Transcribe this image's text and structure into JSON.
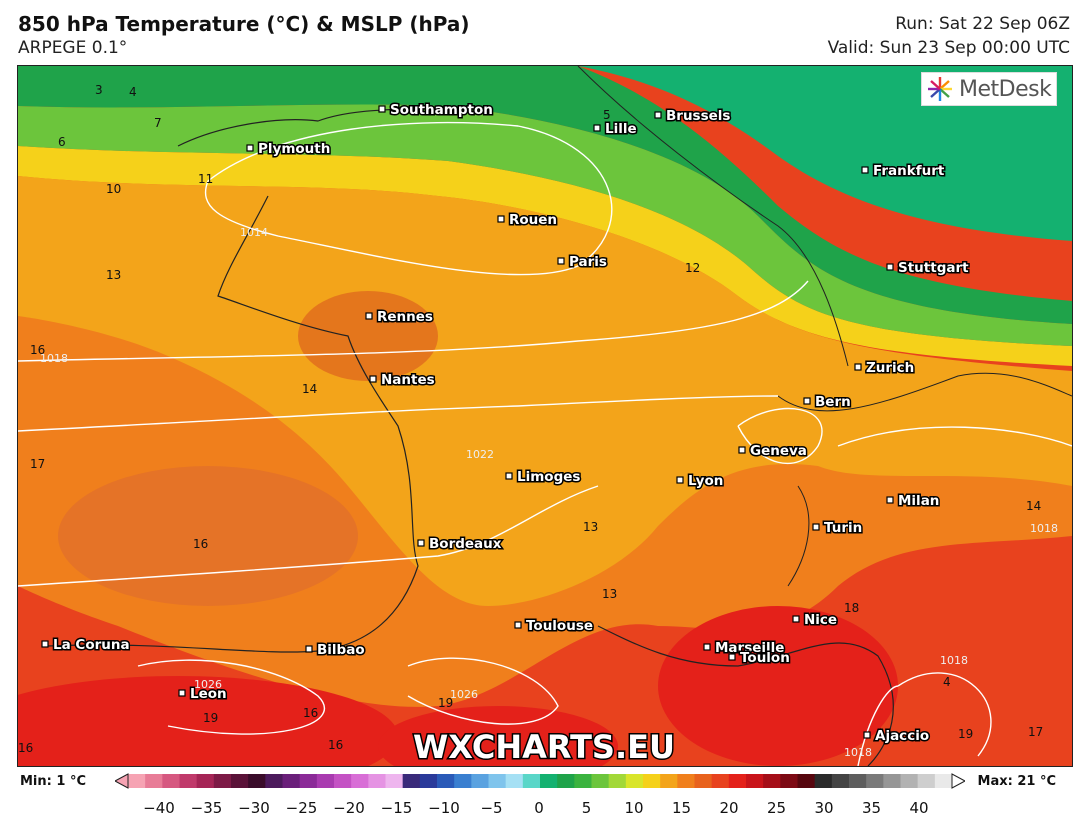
{
  "header": {
    "title": "850 hPa Temperature (°C) & MSLP (hPa)",
    "model": "ARPEGE 0.1°",
    "run": "Run: Sat 22 Sep 06Z",
    "valid": "Valid: Sun 23 Sep 00:00 UTC"
  },
  "brand": {
    "name": "MetDesk"
  },
  "watermark": "WXCHARTS.EU",
  "cities": [
    {
      "name": "Southampton"
    },
    {
      "name": "Brussels"
    },
    {
      "name": "Lille"
    },
    {
      "name": "Plymouth"
    },
    {
      "name": "Frankfurt"
    },
    {
      "name": "Rouen"
    },
    {
      "name": "Paris"
    },
    {
      "name": "Stuttgart"
    },
    {
      "name": "Rennes"
    },
    {
      "name": "Zurich"
    },
    {
      "name": "Nantes"
    },
    {
      "name": "Bern"
    },
    {
      "name": "Geneva"
    },
    {
      "name": "Limoges"
    },
    {
      "name": "Lyon"
    },
    {
      "name": "Milan"
    },
    {
      "name": "Turin"
    },
    {
      "name": "Bordeaux"
    },
    {
      "name": "Nice"
    },
    {
      "name": "Toulouse"
    },
    {
      "name": "Marseille"
    },
    {
      "name": "Toulon"
    },
    {
      "name": "La Coruna"
    },
    {
      "name": "Bilbao"
    },
    {
      "name": "Leon"
    },
    {
      "name": "Ajaccio"
    }
  ],
  "temp_labels": [
    "3",
    "4",
    "7",
    "6",
    "5",
    "11",
    "10",
    "13",
    "12",
    "16",
    "14",
    "17",
    "16",
    "13",
    "13",
    "18",
    "16",
    "19",
    "16",
    "16",
    "19",
    "17",
    "19",
    "14",
    "4"
  ],
  "pressure_labels": [
    "1018",
    "1014",
    "1022",
    "1026",
    "1026",
    "1018",
    "1018",
    "1018"
  ],
  "scale": {
    "min_label": "Min: 1 °C",
    "max_label": "Max: 21 °C",
    "ticks": [
      "−40",
      "−35",
      "−30",
      "−25",
      "−20",
      "−15",
      "−10",
      "−5",
      "0",
      "5",
      "10",
      "15",
      "20",
      "25",
      "30",
      "35",
      "40"
    ]
  }
}
